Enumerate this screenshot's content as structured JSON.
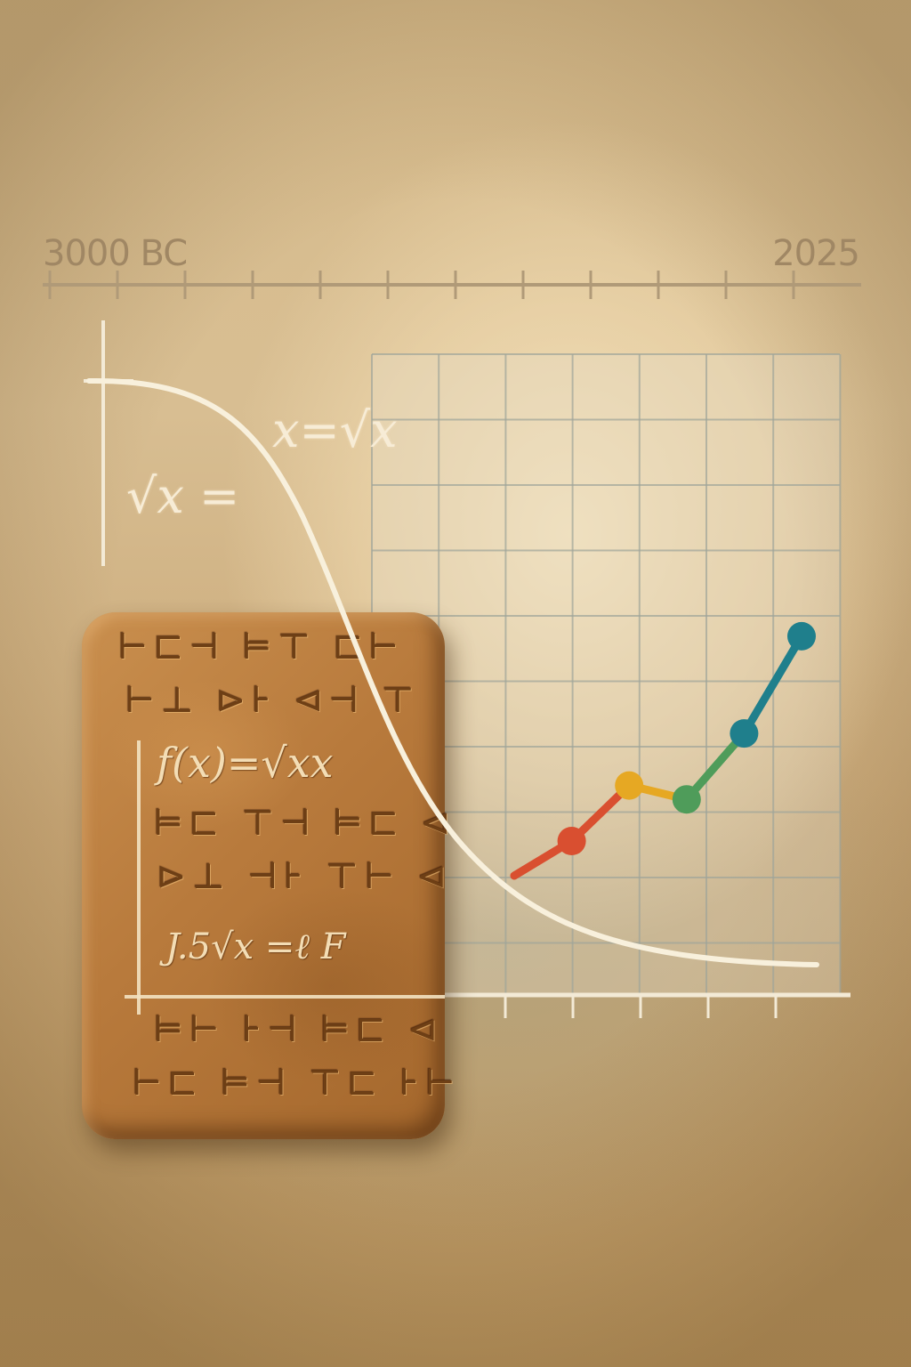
{
  "timeline": {
    "start_label": "3000 BC",
    "end_label": "2025"
  },
  "formulas": {
    "top_right": "x=√x",
    "top_left": "√x =",
    "tablet_main": "f(x)=√xx",
    "tablet_lower": "J.5√x =ℓ F"
  },
  "tablet": {
    "rows": [
      "ꟷ",
      "ꟷ",
      "ꟷ",
      "ꟷ",
      "ꟷ",
      "ꟷ",
      "ꟷ"
    ]
  },
  "colors": {
    "line_segment_1": "#d94f30",
    "line_segment_2": "#e6a823",
    "line_segment_3": "#4f9c5a",
    "line_segment_4": "#1f7f8c",
    "curve": "#f8f0dc"
  },
  "chart_data": {
    "type": "line",
    "series": [
      {
        "values": [
          0,
          1,
          2.6,
          2.2,
          4.1,
          6.9
        ]
      }
    ]
  }
}
